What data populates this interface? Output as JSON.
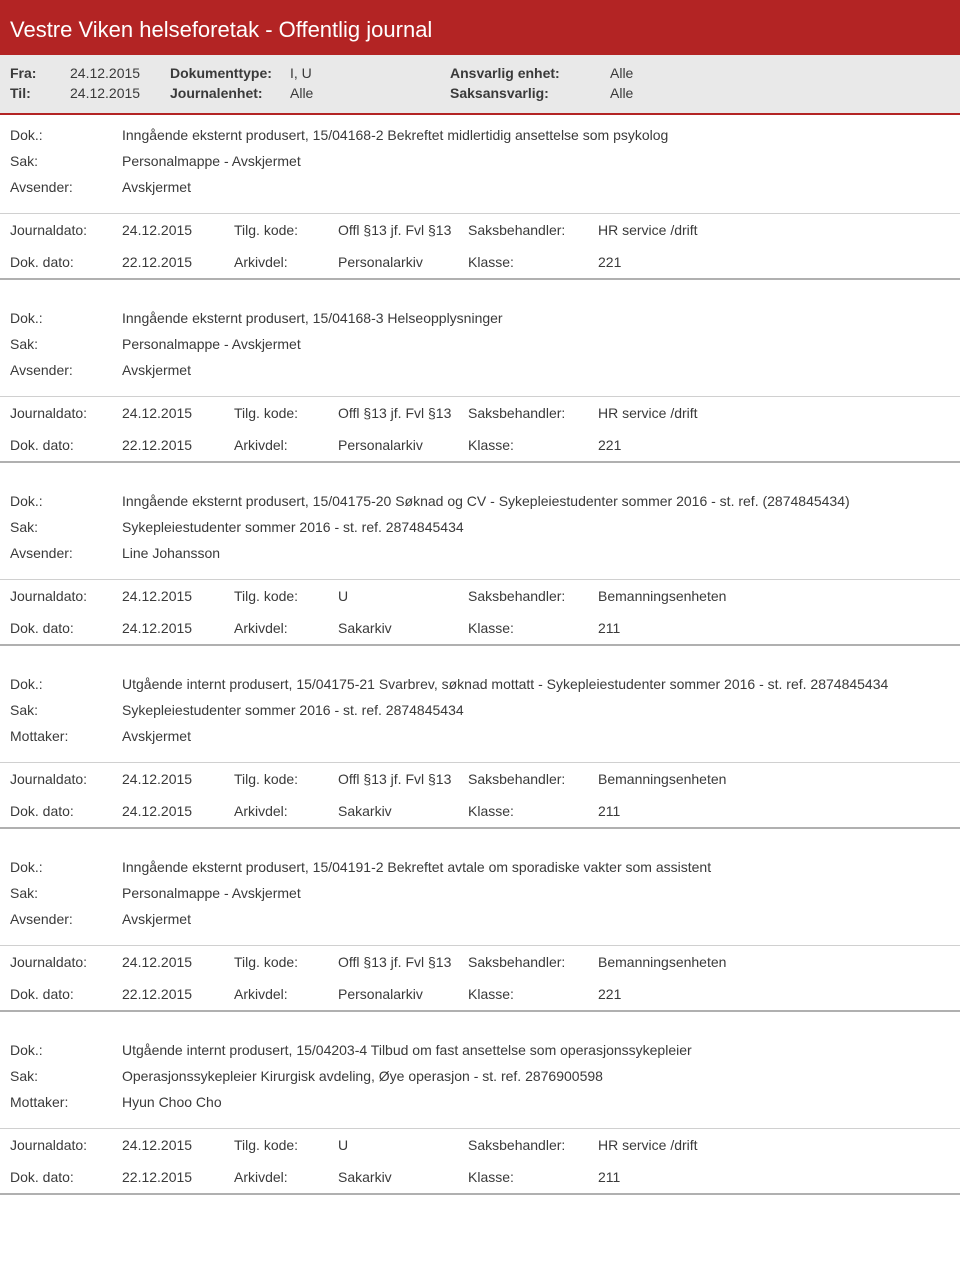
{
  "header": {
    "title": "Vestre Viken helseforetak - Offentlig journal"
  },
  "filter": {
    "fra_label": "Fra:",
    "fra_value": "24.12.2015",
    "til_label": "Til:",
    "til_value": "24.12.2015",
    "doktype_label": "Dokumenttype:",
    "doktype_value": "I, U",
    "journalenhet_label": "Journalenhet:",
    "journalenhet_value": "Alle",
    "ansvarlig_label": "Ansvarlig enhet:",
    "ansvarlig_value": "Alle",
    "saksansvarlig_label": "Saksansvarlig:",
    "saksansvarlig_value": "Alle"
  },
  "labels": {
    "dok": "Dok.:",
    "sak": "Sak:",
    "avsender": "Avsender:",
    "mottaker": "Mottaker:",
    "journaldato": "Journaldato:",
    "dokdato": "Dok. dato:",
    "tilgkode": "Tilg. kode:",
    "arkivdel": "Arkivdel:",
    "saksbehandler": "Saksbehandler:",
    "klasse": "Klasse:"
  },
  "entries": [
    {
      "dok": "Inngående eksternt produsert, 15/04168-2 Bekreftet midlertidig ansettelse som psykolog",
      "sak": "Personalmappe - Avskjermet",
      "party_label": "Avsender:",
      "party_value": "Avskjermet",
      "journaldato": "24.12.2015",
      "tilgkode": "Offl §13 jf. Fvl §13",
      "saksbehandler": "HR service /drift",
      "dokdato": "22.12.2015",
      "arkivdel": "Personalarkiv",
      "klasse": "221"
    },
    {
      "dok": "Inngående eksternt produsert, 15/04168-3 Helseopplysninger",
      "sak": "Personalmappe - Avskjermet",
      "party_label": "Avsender:",
      "party_value": "Avskjermet",
      "journaldato": "24.12.2015",
      "tilgkode": "Offl §13 jf. Fvl §13",
      "saksbehandler": "HR service /drift",
      "dokdato": "22.12.2015",
      "arkivdel": "Personalarkiv",
      "klasse": "221"
    },
    {
      "dok": "Inngående eksternt produsert, 15/04175-20 Søknad og CV - Sykepleiestudenter sommer 2016 - st. ref. (2874845434)",
      "sak": "Sykepleiestudenter sommer 2016  - st. ref. 2874845434",
      "party_label": "Avsender:",
      "party_value": "Line Johansson",
      "journaldato": "24.12.2015",
      "tilgkode": "U",
      "saksbehandler": "Bemanningsenheten",
      "dokdato": "24.12.2015",
      "arkivdel": "Sakarkiv",
      "klasse": "211"
    },
    {
      "dok": "Utgående internt produsert, 15/04175-21 Svarbrev, søknad mottatt - Sykepleiestudenter sommer 2016  - st. ref. 2874845434",
      "sak": "Sykepleiestudenter sommer 2016  - st. ref. 2874845434",
      "party_label": "Mottaker:",
      "party_value": "Avskjermet",
      "journaldato": "24.12.2015",
      "tilgkode": "Offl §13 jf. Fvl §13",
      "saksbehandler": "Bemanningsenheten",
      "dokdato": "24.12.2015",
      "arkivdel": "Sakarkiv",
      "klasse": "211"
    },
    {
      "dok": "Inngående eksternt produsert, 15/04191-2 Bekreftet avtale om sporadiske vakter som assistent",
      "sak": "Personalmappe - Avskjermet",
      "party_label": "Avsender:",
      "party_value": "Avskjermet",
      "journaldato": "24.12.2015",
      "tilgkode": "Offl §13 jf. Fvl §13",
      "saksbehandler": "Bemanningsenheten",
      "dokdato": "22.12.2015",
      "arkivdel": "Personalarkiv",
      "klasse": "221"
    },
    {
      "dok": "Utgående internt produsert, 15/04203-4 Tilbud om fast ansettelse som operasjonssykepleier",
      "sak": "Operasjonssykepleier Kirurgisk avdeling, Øye operasjon - st. ref. 2876900598",
      "party_label": "Mottaker:",
      "party_value": "Hyun Choo Cho",
      "journaldato": "24.12.2015",
      "tilgkode": "U",
      "saksbehandler": "HR service /drift",
      "dokdato": "22.12.2015",
      "arkivdel": "Sakarkiv",
      "klasse": "211"
    }
  ]
}
